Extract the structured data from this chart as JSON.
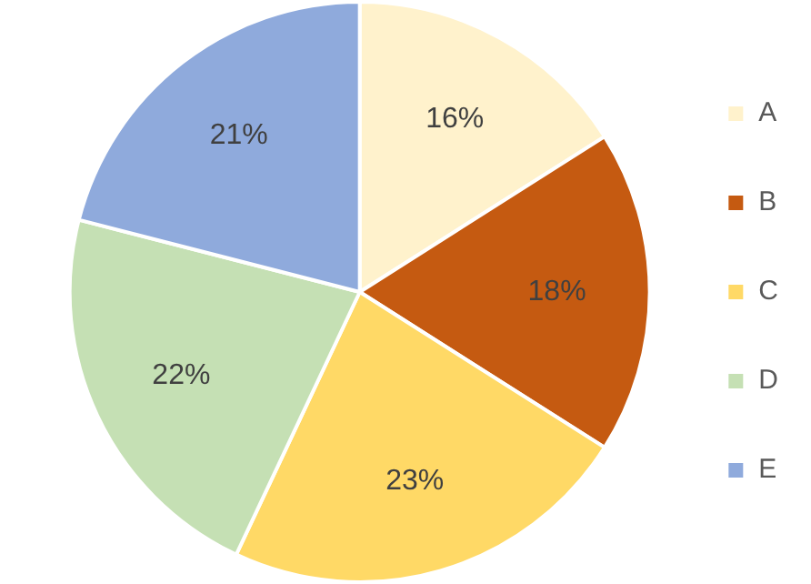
{
  "chart_data": {
    "type": "pie",
    "categories": [
      "A",
      "B",
      "C",
      "D",
      "E"
    ],
    "values": [
      16,
      18,
      23,
      22,
      21
    ],
    "value_labels": [
      "16%",
      "18%",
      "23%",
      "22%",
      "21%"
    ],
    "colors": [
      "#fff2cc",
      "#c55a11",
      "#ffd966",
      "#c5e0b4",
      "#8faadc"
    ],
    "legend": "right"
  }
}
